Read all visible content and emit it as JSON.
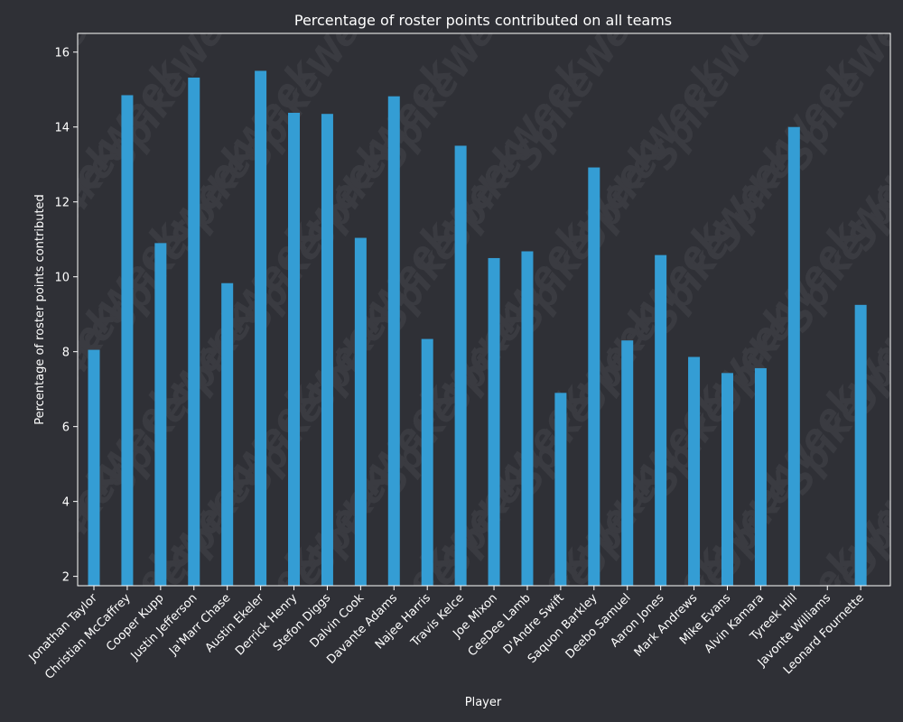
{
  "chart_data": {
    "type": "bar",
    "title": "Percentage of roster points contributed on all teams",
    "xlabel": "Player",
    "ylabel": "Percentage of roster points contributed",
    "ylim": [
      1.75,
      16.5
    ],
    "yticks": [
      2,
      4,
      6,
      8,
      10,
      12,
      14,
      16
    ],
    "grid": false,
    "legend": "none",
    "categories": [
      "Jonathan Taylor",
      "Christian McCaffrey",
      "Cooper Kupp",
      "Justin Jefferson",
      "Ja'Marr Chase",
      "Austin Ekeler",
      "Derrick Henry",
      "Stefon Diggs",
      "Dalvin Cook",
      "Davante Adams",
      "Najee Harris",
      "Travis Kelce",
      "Joe Mixon",
      "CeeDee Lamb",
      "D'Andre Swift",
      "Saquon Barkley",
      "Deebo Samuel",
      "Aaron Jones",
      "Mark Andrews",
      "Mike Evans",
      "Alvin Kamara",
      "Tyreek Hill",
      "Javonte Williams",
      "Leonard Fournette"
    ],
    "values": [
      8.05,
      14.85,
      10.9,
      15.32,
      9.83,
      15.5,
      14.38,
      14.35,
      11.04,
      14.82,
      8.34,
      13.5,
      10.5,
      10.68,
      6.9,
      12.92,
      8.3,
      10.58,
      7.86,
      7.43,
      7.56,
      14.0,
      null,
      9.25
    ],
    "colors": {
      "background": "#2f3036",
      "bar": "#349dd4",
      "axis": "#ffffff",
      "text": "#ffffff",
      "watermark": "#3a3b41"
    }
  }
}
